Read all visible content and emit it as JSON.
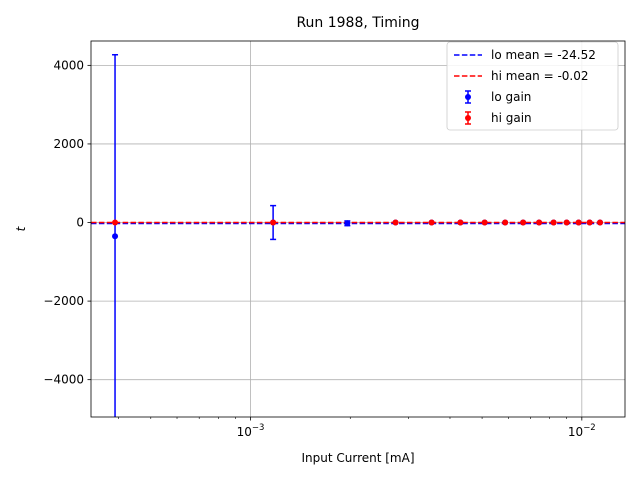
{
  "chart_data": {
    "type": "scatter",
    "title": "Run 1988, Timing",
    "xlabel": "Input Current [mA]",
    "ylabel": "t",
    "xscale": "log",
    "xlim": [
      0.00033,
      0.0135
    ],
    "ylim": [
      -4950,
      4620
    ],
    "grid": true,
    "legend_position": "top-right",
    "x_ticks": [
      {
        "value": 0.001,
        "base": "10",
        "exp": "−3"
      },
      {
        "value": 0.01,
        "base": "10",
        "exp": "−2"
      }
    ],
    "y_ticks": [
      {
        "value": -4000,
        "label": "−4000"
      },
      {
        "value": -2000,
        "label": "−2000"
      },
      {
        "value": 0,
        "label": "0"
      },
      {
        "value": 2000,
        "label": "2000"
      },
      {
        "value": 4000,
        "label": "4000"
      }
    ],
    "mean_lines": [
      {
        "label": "lo mean = -24.52",
        "value": -24.52,
        "color": "#0000ff"
      },
      {
        "label": "hi mean = -0.02",
        "value": -0.02,
        "color": "#ff0000"
      }
    ],
    "series": [
      {
        "name": "lo gain",
        "color": "#0000ff",
        "points": [
          {
            "x": 0.00039,
            "y": -350,
            "err": 4620
          },
          {
            "x": 0.00117,
            "y": 0,
            "err": 430
          },
          {
            "x": 0.00196,
            "y": -20,
            "err": 60
          },
          {
            "x": 0.00274,
            "y": 0,
            "err": 0
          },
          {
            "x": 0.00352,
            "y": 0,
            "err": 0
          },
          {
            "x": 0.0043,
            "y": 0,
            "err": 0
          },
          {
            "x": 0.00509,
            "y": 0,
            "err": 0
          },
          {
            "x": 0.00587,
            "y": 0,
            "err": 0
          },
          {
            "x": 0.00665,
            "y": 0,
            "err": 0
          },
          {
            "x": 0.00743,
            "y": 0,
            "err": 0
          },
          {
            "x": 0.00822,
            "y": 0,
            "err": 0
          },
          {
            "x": 0.009,
            "y": 0,
            "err": 0
          },
          {
            "x": 0.00978,
            "y": 0,
            "err": 0
          },
          {
            "x": 0.01056,
            "y": 0,
            "err": 0
          },
          {
            "x": 0.01135,
            "y": 0,
            "err": 0
          }
        ]
      },
      {
        "name": "hi gain",
        "color": "#ff0000",
        "points": [
          {
            "x": 0.00039,
            "y": 0,
            "err": 0
          },
          {
            "x": 0.00117,
            "y": 0,
            "err": 0
          },
          {
            "x": 0.00274,
            "y": 0,
            "err": 0
          },
          {
            "x": 0.00352,
            "y": 0,
            "err": 0
          },
          {
            "x": 0.0043,
            "y": 0,
            "err": 0
          },
          {
            "x": 0.00509,
            "y": 0,
            "err": 0
          },
          {
            "x": 0.00587,
            "y": 0,
            "err": 0
          },
          {
            "x": 0.00665,
            "y": 0,
            "err": 0
          },
          {
            "x": 0.00743,
            "y": 0,
            "err": 0
          },
          {
            "x": 0.00822,
            "y": 0,
            "err": 0
          },
          {
            "x": 0.009,
            "y": 0,
            "err": 0
          },
          {
            "x": 0.00978,
            "y": 0,
            "err": 0
          },
          {
            "x": 0.01056,
            "y": 0,
            "err": 0
          },
          {
            "x": 0.01135,
            "y": 0,
            "err": 0
          }
        ]
      }
    ]
  }
}
